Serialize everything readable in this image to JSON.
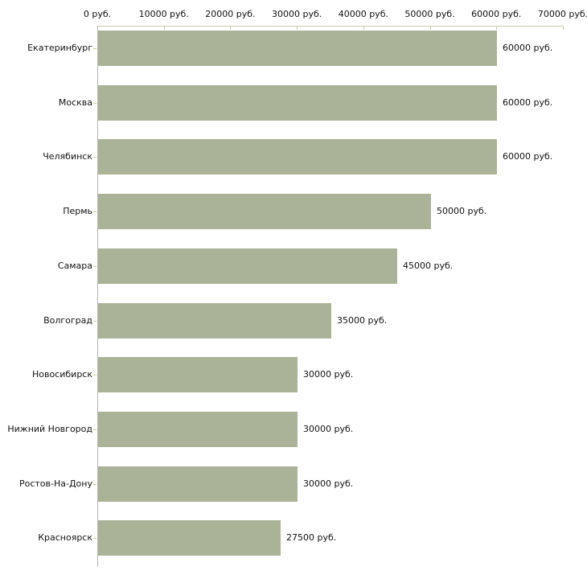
{
  "chart_data": {
    "type": "bar",
    "orientation": "horizontal",
    "title": "",
    "xlabel": "",
    "ylabel": "",
    "unit": "руб.",
    "xlim": [
      0,
      70000
    ],
    "grid": false,
    "legend": false,
    "categories": [
      "Екатеринбург",
      "Москва",
      "Челябинск",
      "Пермь",
      "Самара",
      "Волгоград",
      "Новосибирск",
      "Нижний Новгород",
      "Ростов-На-Дону",
      "Красноярск"
    ],
    "values": [
      60000,
      60000,
      60000,
      50000,
      45000,
      35000,
      30000,
      30000,
      30000,
      27500
    ],
    "value_labels": [
      "60000 руб.",
      "60000 руб.",
      "60000 руб.",
      "50000 руб.",
      "45000 руб.",
      "35000 руб.",
      "30000 руб.",
      "30000 руб.",
      "30000 руб.",
      "27500 руб."
    ],
    "x_ticks": [
      {
        "value": 0,
        "label": "0 руб."
      },
      {
        "value": 10000,
        "label": "10000 руб."
      },
      {
        "value": 20000,
        "label": "20000 руб."
      },
      {
        "value": 30000,
        "label": "30000 руб."
      },
      {
        "value": 40000,
        "label": "40000 руб."
      },
      {
        "value": 50000,
        "label": "50000 руб."
      },
      {
        "value": 60000,
        "label": "60000 руб."
      },
      {
        "value": 70000,
        "label": "70000 руб."
      }
    ],
    "colors": {
      "bar": "#aab397",
      "axis_line": "#c9cbaa",
      "axis_vertical": "#b6b6b6",
      "text": "#111111",
      "background": "#ffffff"
    }
  }
}
